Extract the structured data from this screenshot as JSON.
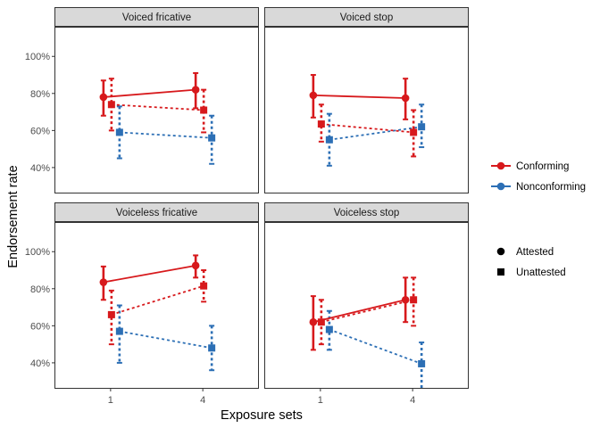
{
  "chart_data": {
    "type": "line",
    "xlabel": "Exposure sets",
    "ylabel": "Endorsement rate",
    "x_ticks": [
      "1",
      "4"
    ],
    "y_ticks": [
      40,
      60,
      80,
      100
    ],
    "y_tick_labels": [
      "40%",
      "60%",
      "80%",
      "100%"
    ],
    "ylim": [
      26,
      116
    ],
    "series_colors": {
      "Conforming": "#d7191c",
      "Nonconforming": "#2c6fb5"
    },
    "legend": {
      "color_items": [
        {
          "key": "Conforming",
          "label": "Conforming"
        },
        {
          "key": "Nonconforming",
          "label": "Nonconforming"
        }
      ],
      "shape_items": [
        {
          "key": "attested",
          "label": "Attested",
          "shape": "circle"
        },
        {
          "key": "unattested",
          "label": "Unattested",
          "shape": "square"
        }
      ]
    },
    "panels": [
      {
        "title": "Voiced fricative",
        "series": [
          {
            "name": "Conforming",
            "attestation": "attested",
            "dashed": false,
            "x": [
              "1",
              "4"
            ],
            "values": [
              78,
              82
            ],
            "ci_low": [
              68,
              72
            ],
            "ci_high": [
              87,
              91
            ]
          },
          {
            "name": "Conforming",
            "attestation": "unattested",
            "dashed": true,
            "x": [
              "1",
              "4"
            ],
            "values": [
              74,
              71
            ],
            "ci_low": [
              60,
              59
            ],
            "ci_high": [
              88,
              82
            ]
          },
          {
            "name": "Nonconforming",
            "attestation": "unattested",
            "dashed": true,
            "x": [
              "1",
              "4"
            ],
            "values": [
              59,
              56
            ],
            "ci_low": [
              45,
              42
            ],
            "ci_high": [
              73,
              68
            ]
          }
        ]
      },
      {
        "title": "Voiced stop",
        "series": [
          {
            "name": "Conforming",
            "attestation": "attested",
            "dashed": false,
            "x": [
              "1",
              "4"
            ],
            "values": [
              79,
              77.5
            ],
            "ci_low": [
              67,
              66
            ],
            "ci_high": [
              90,
              88
            ]
          },
          {
            "name": "Conforming",
            "attestation": "unattested",
            "dashed": true,
            "x": [
              "1",
              "4"
            ],
            "values": [
              63.5,
              59
            ],
            "ci_low": [
              54,
              46
            ],
            "ci_high": [
              74,
              71
            ]
          },
          {
            "name": "Nonconforming",
            "attestation": "unattested",
            "dashed": true,
            "x": [
              "1",
              "4"
            ],
            "values": [
              55,
              62
            ],
            "ci_low": [
              41,
              51
            ],
            "ci_high": [
              69,
              74
            ]
          }
        ]
      },
      {
        "title": "Voiceless fricative",
        "series": [
          {
            "name": "Conforming",
            "attestation": "attested",
            "dashed": false,
            "x": [
              "1",
              "4"
            ],
            "values": [
              83.5,
              92.5
            ],
            "ci_low": [
              74,
              86
            ],
            "ci_high": [
              92,
              98
            ]
          },
          {
            "name": "Conforming",
            "attestation": "unattested",
            "dashed": true,
            "x": [
              "1",
              "4"
            ],
            "values": [
              66,
              81.5
            ],
            "ci_low": [
              50,
              73
            ],
            "ci_high": [
              79,
              90
            ]
          },
          {
            "name": "Nonconforming",
            "attestation": "unattested",
            "dashed": true,
            "x": [
              "1",
              "4"
            ],
            "values": [
              57,
              48
            ],
            "ci_low": [
              40,
              36
            ],
            "ci_high": [
              71,
              60
            ]
          }
        ]
      },
      {
        "title": "Voiceless stop",
        "series": [
          {
            "name": "Conforming",
            "attestation": "attested",
            "dashed": false,
            "x": [
              "1",
              "4"
            ],
            "values": [
              62,
              74
            ],
            "ci_low": [
              47,
              62
            ],
            "ci_high": [
              76,
              86
            ]
          },
          {
            "name": "Conforming",
            "attestation": "unattested",
            "dashed": true,
            "x": [
              "1",
              "4"
            ],
            "values": [
              62,
              74
            ],
            "ci_low": [
              50,
              60
            ],
            "ci_high": [
              74,
              86
            ]
          },
          {
            "name": "Nonconforming",
            "attestation": "unattested",
            "dashed": true,
            "x": [
              "1",
              "4"
            ],
            "values": [
              58,
              39.5
            ],
            "ci_low": [
              47,
              26
            ],
            "ci_high": [
              68,
              51
            ]
          }
        ]
      }
    ]
  }
}
